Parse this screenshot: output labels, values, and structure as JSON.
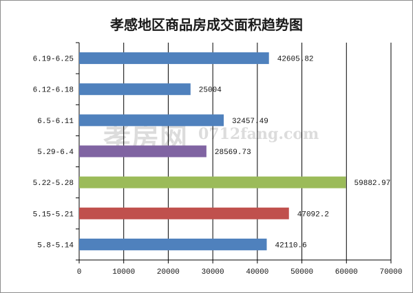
{
  "chart_data": {
    "type": "bar",
    "orientation": "horizontal",
    "title": "孝感地区商品房成交面积趋势图",
    "categories": [
      "6.19-6.25",
      "6.12-6.18",
      "6.5-6.11",
      "5.29-6.4",
      "5.22-5.28",
      "5.15-5.21",
      "5.8-5.14"
    ],
    "values": [
      42605.82,
      25004,
      32457.49,
      28569.73,
      59882.97,
      47092.2,
      42110.6
    ],
    "data_labels": [
      "42605.82",
      "25004",
      "32457.49",
      "28569.73",
      "59882.97",
      "47092.2",
      "42110.6"
    ],
    "bar_colors": [
      "#4F81BD",
      "#4F81BD",
      "#4F81BD",
      "#8064A2",
      "#9BBB59",
      "#C0504D",
      "#4F81BD"
    ],
    "xlim": [
      0,
      70000
    ],
    "x_ticks": [
      0,
      10000,
      20000,
      30000,
      40000,
      50000,
      60000,
      70000
    ],
    "x_tick_labels": [
      "0",
      "10000",
      "20000",
      "30000",
      "40000",
      "50000",
      "60000",
      "70000"
    ],
    "xlabel": "",
    "ylabel": "",
    "grid": true,
    "legend": "none"
  },
  "watermark": {
    "cn": "孝房网",
    "en": "0712fang.com"
  }
}
